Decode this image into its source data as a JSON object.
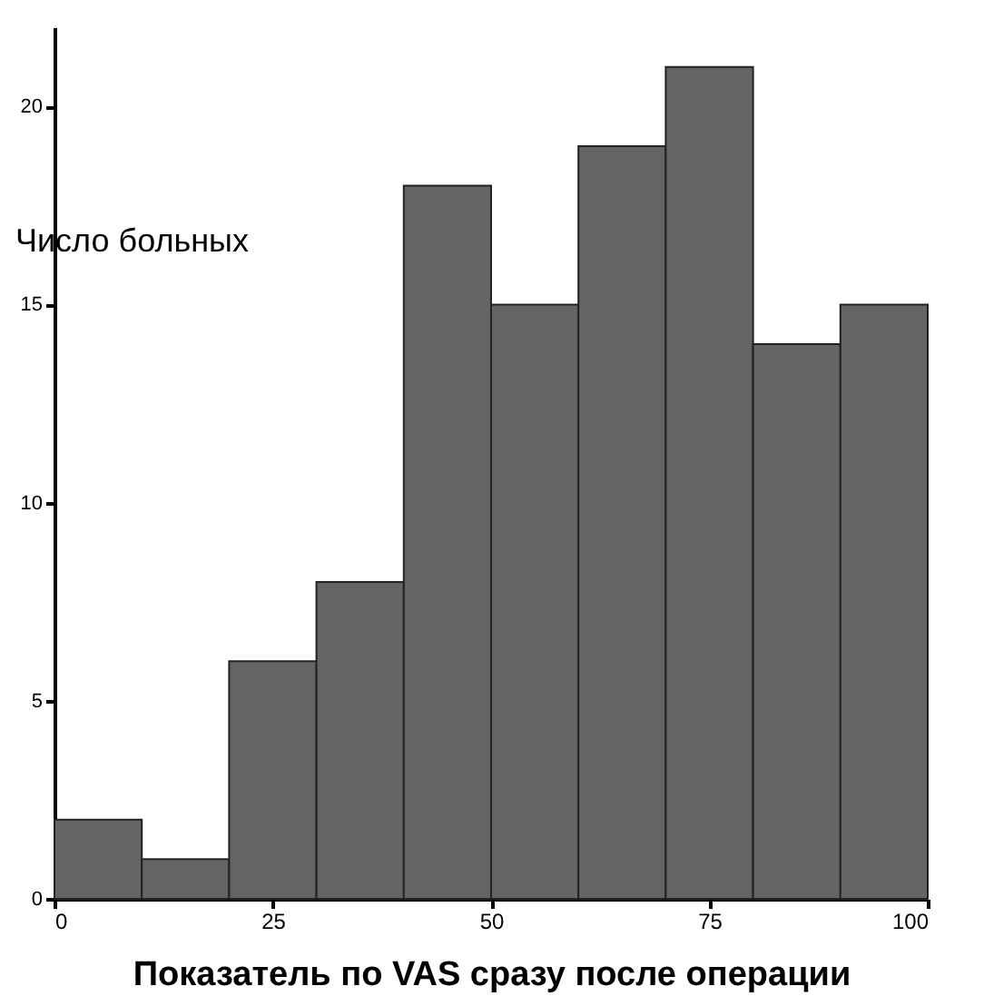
{
  "chart_data": {
    "type": "histogram",
    "xlabel": "Показатель по VAS  сразу после операции",
    "ylabel": "Число   больных",
    "bins": [
      0,
      10,
      20,
      30,
      40,
      50,
      60,
      70,
      80,
      90,
      100
    ],
    "values": [
      2,
      1,
      6,
      8,
      18,
      15,
      19,
      21,
      14,
      15
    ],
    "color": "#646464",
    "xlim": [
      0,
      100
    ],
    "xticks": [
      0,
      25,
      50,
      75,
      100
    ],
    "ylim": [
      0,
      22
    ],
    "yticks": [
      0,
      5,
      10,
      15,
      20
    ],
    "grid": false
  }
}
